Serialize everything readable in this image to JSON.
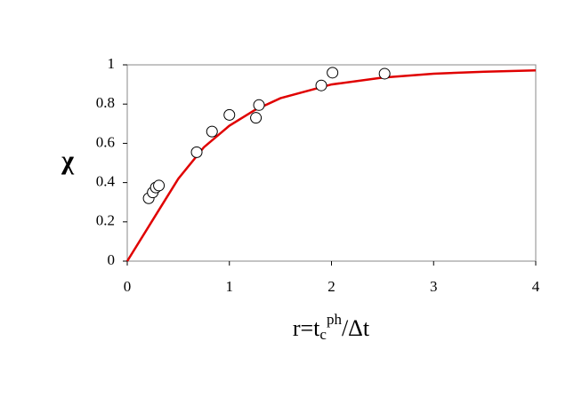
{
  "chart_data": {
    "type": "scatter",
    "ylabel": "χ",
    "xlabel": {
      "base": "r=t",
      "sub": "c",
      "sup": "ph",
      "rest": "/Δt"
    },
    "xlim": [
      0,
      4
    ],
    "xticks": [
      0,
      1,
      2,
      3,
      4
    ],
    "ylim": [
      0,
      1
    ],
    "yticks": [
      0,
      0.2,
      0.4,
      0.6,
      0.8,
      1
    ],
    "grid": false,
    "series": [
      {
        "type": "scatter",
        "color": "#000000",
        "x": [
          0.21,
          0.25,
          0.28,
          0.31,
          0.68,
          0.83,
          1.0,
          1.26,
          1.29,
          1.9,
          2.01,
          2.52
        ],
        "values": [
          0.32,
          0.35,
          0.375,
          0.385,
          0.555,
          0.66,
          0.745,
          0.73,
          0.795,
          0.895,
          0.96,
          0.955
        ]
      },
      {
        "type": "line",
        "color": "#e00000",
        "x": [
          0,
          0.25,
          0.5,
          0.75,
          1,
          1.25,
          1.5,
          2,
          2.5,
          3,
          3.5,
          4
        ],
        "values": [
          0,
          0.21,
          0.42,
          0.58,
          0.69,
          0.77,
          0.83,
          0.9,
          0.935,
          0.955,
          0.965,
          0.972
        ]
      }
    ]
  }
}
